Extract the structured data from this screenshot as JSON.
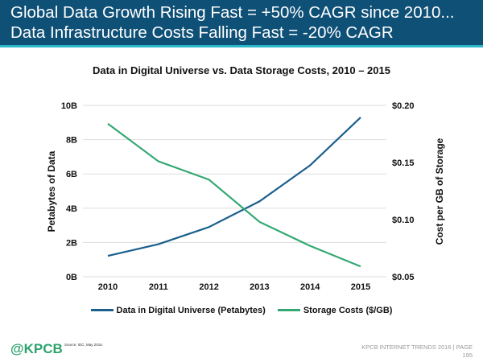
{
  "header": {
    "line1": "Global Data Growth Rising Fast = +50% CAGR since 2010...",
    "line2": "Data Infrastructure Costs Falling Fast = -20% CAGR"
  },
  "chart_data": {
    "type": "line",
    "title": "Data in Digital Universe vs. Data Storage Costs, 2010 – 2015",
    "categories": [
      "2010",
      "2011",
      "2012",
      "2013",
      "2014",
      "2015"
    ],
    "ylabel": "Petabytes of Data",
    "y2label": "Cost per GB of Storage",
    "ylim": [
      0,
      10
    ],
    "y2lim": [
      0.05,
      0.2
    ],
    "yticks": [
      "0B",
      "2B",
      "4B",
      "6B",
      "8B",
      "10B"
    ],
    "y2ticks": [
      "$0.05",
      "$0.10",
      "$0.15",
      "$0.20"
    ],
    "grid": true,
    "legend_position": "bottom",
    "series": [
      {
        "name": "Data in Digital Universe (Petabytes)",
        "axis": "left",
        "color": "#1a5f8e",
        "values": [
          1.22,
          1.9,
          2.9,
          4.4,
          6.5,
          9.3
        ]
      },
      {
        "name": "Storage Costs ($/GB)",
        "axis": "right",
        "color": "#33a873",
        "values": [
          0.184,
          0.151,
          0.135,
          0.098,
          0.077,
          0.059
        ]
      }
    ]
  },
  "footer": {
    "logo": "@KPCB",
    "source": "Source: IDC, May 2016.",
    "report": "KPCB INTERNET TRENDS 2016  |  PAGE",
    "page": "195"
  }
}
